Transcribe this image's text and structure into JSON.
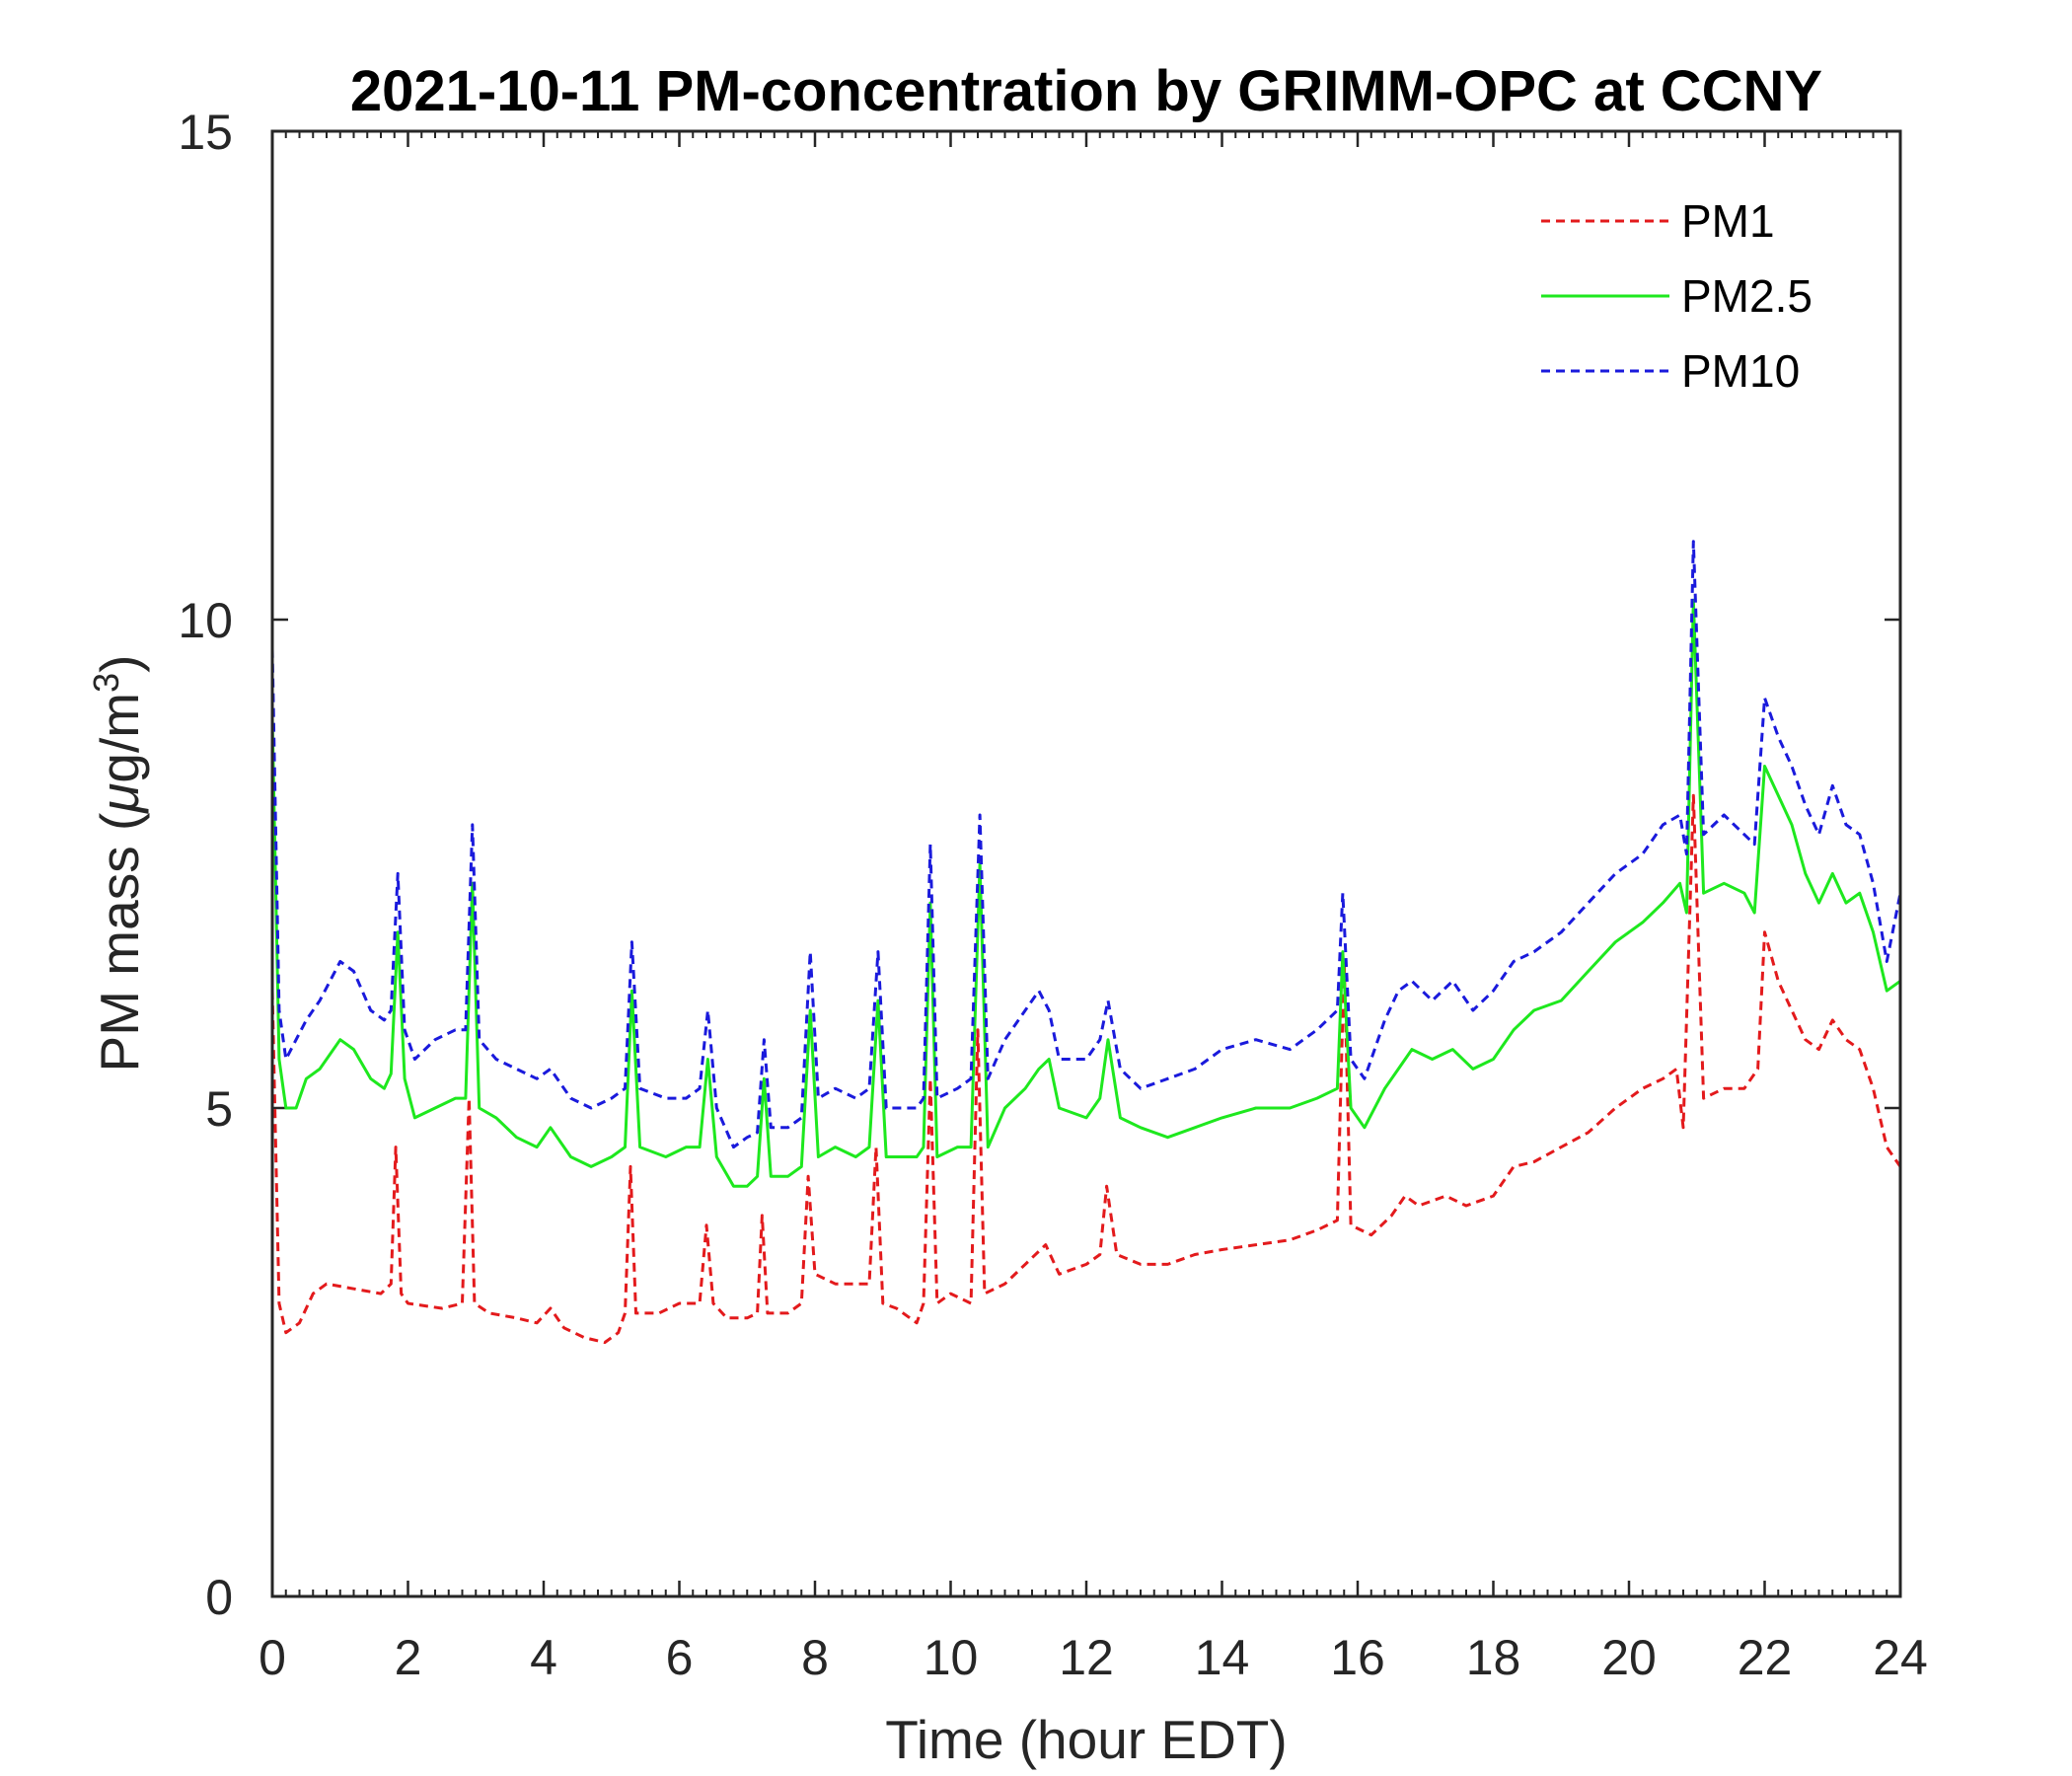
{
  "chart_data": {
    "type": "line",
    "title": "2021-10-11 PM-concentration by GRIMM-OPC at CCNY",
    "xlabel": "Time (hour EDT)",
    "ylabel": {
      "prefix": "PM mass (",
      "mu": "μ",
      "unit": "g/m",
      "sup": "3",
      "suffix": ")"
    },
    "xlim": [
      0,
      24
    ],
    "ylim": [
      0,
      15
    ],
    "xticks": [
      0,
      2,
      4,
      6,
      8,
      10,
      12,
      14,
      16,
      18,
      20,
      22,
      24
    ],
    "yticks": [
      0,
      5,
      10,
      15
    ],
    "legend_position": "top-right",
    "series": [
      {
        "name": "PM1",
        "color": "#e31a1c",
        "style": "dashed",
        "points": [
          [
            0,
            6.2
          ],
          [
            0.1,
            3.0
          ],
          [
            0.2,
            2.7
          ],
          [
            0.4,
            2.8
          ],
          [
            0.6,
            3.1
          ],
          [
            0.8,
            3.2
          ],
          [
            1.2,
            3.15
          ],
          [
            1.6,
            3.1
          ],
          [
            1.75,
            3.2
          ],
          [
            1.82,
            4.6
          ],
          [
            1.9,
            3.1
          ],
          [
            2.0,
            3.0
          ],
          [
            2.5,
            2.95
          ],
          [
            2.8,
            3.0
          ],
          [
            2.9,
            5.1
          ],
          [
            2.98,
            3.0
          ],
          [
            3.2,
            2.9
          ],
          [
            3.6,
            2.85
          ],
          [
            3.9,
            2.8
          ],
          [
            4.1,
            2.95
          ],
          [
            4.3,
            2.75
          ],
          [
            4.6,
            2.65
          ],
          [
            4.9,
            2.6
          ],
          [
            5.1,
            2.7
          ],
          [
            5.2,
            2.9
          ],
          [
            5.28,
            4.4
          ],
          [
            5.36,
            2.9
          ],
          [
            5.7,
            2.9
          ],
          [
            6.0,
            3.0
          ],
          [
            6.3,
            3.0
          ],
          [
            6.4,
            3.8
          ],
          [
            6.5,
            3.0
          ],
          [
            6.7,
            2.85
          ],
          [
            7.0,
            2.85
          ],
          [
            7.15,
            2.9
          ],
          [
            7.22,
            3.9
          ],
          [
            7.3,
            2.9
          ],
          [
            7.6,
            2.9
          ],
          [
            7.8,
            3.0
          ],
          [
            7.9,
            4.3
          ],
          [
            8.0,
            3.3
          ],
          [
            8.3,
            3.2
          ],
          [
            8.6,
            3.2
          ],
          [
            8.8,
            3.2
          ],
          [
            8.9,
            4.6
          ],
          [
            9.0,
            3.0
          ],
          [
            9.2,
            2.95
          ],
          [
            9.5,
            2.8
          ],
          [
            9.6,
            3.0
          ],
          [
            9.7,
            5.3
          ],
          [
            9.8,
            3.0
          ],
          [
            10.0,
            3.1
          ],
          [
            10.3,
            3.0
          ],
          [
            10.4,
            5.8
          ],
          [
            10.5,
            3.1
          ],
          [
            10.8,
            3.2
          ],
          [
            11.1,
            3.4
          ],
          [
            11.4,
            3.6
          ],
          [
            11.6,
            3.3
          ],
          [
            12.0,
            3.4
          ],
          [
            12.2,
            3.5
          ],
          [
            12.3,
            4.2
          ],
          [
            12.45,
            3.5
          ],
          [
            12.8,
            3.4
          ],
          [
            13.2,
            3.4
          ],
          [
            13.6,
            3.5
          ],
          [
            14.0,
            3.55
          ],
          [
            14.5,
            3.6
          ],
          [
            15.0,
            3.65
          ],
          [
            15.4,
            3.75
          ],
          [
            15.7,
            3.85
          ],
          [
            15.8,
            6.5
          ],
          [
            15.9,
            3.8
          ],
          [
            16.2,
            3.7
          ],
          [
            16.5,
            3.9
          ],
          [
            16.7,
            4.1
          ],
          [
            16.9,
            4.0
          ],
          [
            17.3,
            4.1
          ],
          [
            17.6,
            4.0
          ],
          [
            18.0,
            4.1
          ],
          [
            18.3,
            4.4
          ],
          [
            18.6,
            4.45
          ],
          [
            19.0,
            4.6
          ],
          [
            19.4,
            4.75
          ],
          [
            19.8,
            5.0
          ],
          [
            20.2,
            5.2
          ],
          [
            20.5,
            5.3
          ],
          [
            20.7,
            5.4
          ],
          [
            20.8,
            4.8
          ],
          [
            20.95,
            8.2
          ],
          [
            21.1,
            5.1
          ],
          [
            21.4,
            5.2
          ],
          [
            21.7,
            5.2
          ],
          [
            21.9,
            5.4
          ],
          [
            22.0,
            6.8
          ],
          [
            22.2,
            6.3
          ],
          [
            22.4,
            6.0
          ],
          [
            22.6,
            5.7
          ],
          [
            22.8,
            5.6
          ],
          [
            23.0,
            5.9
          ],
          [
            23.2,
            5.7
          ],
          [
            23.4,
            5.6
          ],
          [
            23.6,
            5.2
          ],
          [
            23.8,
            4.6
          ],
          [
            24.0,
            4.4
          ]
        ]
      },
      {
        "name": "PM2.5",
        "color": "#1ee81e",
        "style": "solid",
        "points": [
          [
            0,
            9.0
          ],
          [
            0.1,
            5.5
          ],
          [
            0.2,
            5.0
          ],
          [
            0.35,
            5.0
          ],
          [
            0.5,
            5.3
          ],
          [
            0.7,
            5.4
          ],
          [
            1.0,
            5.7
          ],
          [
            1.2,
            5.6
          ],
          [
            1.45,
            5.3
          ],
          [
            1.65,
            5.2
          ],
          [
            1.75,
            5.35
          ],
          [
            1.85,
            6.8
          ],
          [
            1.95,
            5.3
          ],
          [
            2.1,
            4.9
          ],
          [
            2.4,
            5.0
          ],
          [
            2.7,
            5.1
          ],
          [
            2.85,
            5.1
          ],
          [
            2.95,
            7.3
          ],
          [
            3.05,
            5.0
          ],
          [
            3.3,
            4.9
          ],
          [
            3.6,
            4.7
          ],
          [
            3.9,
            4.6
          ],
          [
            4.1,
            4.8
          ],
          [
            4.4,
            4.5
          ],
          [
            4.7,
            4.4
          ],
          [
            5.0,
            4.5
          ],
          [
            5.2,
            4.6
          ],
          [
            5.3,
            6.2
          ],
          [
            5.42,
            4.6
          ],
          [
            5.8,
            4.5
          ],
          [
            6.1,
            4.6
          ],
          [
            6.3,
            4.6
          ],
          [
            6.42,
            5.5
          ],
          [
            6.55,
            4.5
          ],
          [
            6.8,
            4.2
          ],
          [
            7.0,
            4.2
          ],
          [
            7.15,
            4.3
          ],
          [
            7.25,
            5.3
          ],
          [
            7.35,
            4.3
          ],
          [
            7.6,
            4.3
          ],
          [
            7.8,
            4.4
          ],
          [
            7.93,
            6.0
          ],
          [
            8.05,
            4.5
          ],
          [
            8.3,
            4.6
          ],
          [
            8.6,
            4.5
          ],
          [
            8.8,
            4.6
          ],
          [
            8.93,
            6.1
          ],
          [
            9.05,
            4.5
          ],
          [
            9.3,
            4.5
          ],
          [
            9.5,
            4.5
          ],
          [
            9.6,
            4.6
          ],
          [
            9.7,
            7.1
          ],
          [
            9.8,
            4.5
          ],
          [
            10.1,
            4.6
          ],
          [
            10.3,
            4.6
          ],
          [
            10.43,
            7.5
          ],
          [
            10.55,
            4.6
          ],
          [
            10.8,
            5.0
          ],
          [
            11.1,
            5.2
          ],
          [
            11.3,
            5.4
          ],
          [
            11.45,
            5.5
          ],
          [
            11.6,
            5.0
          ],
          [
            12.0,
            4.9
          ],
          [
            12.2,
            5.1
          ],
          [
            12.32,
            5.7
          ],
          [
            12.5,
            4.9
          ],
          [
            12.8,
            4.8
          ],
          [
            13.2,
            4.7
          ],
          [
            13.6,
            4.8
          ],
          [
            14.0,
            4.9
          ],
          [
            14.5,
            5.0
          ],
          [
            15.0,
            5.0
          ],
          [
            15.4,
            5.1
          ],
          [
            15.7,
            5.2
          ],
          [
            15.78,
            6.6
          ],
          [
            15.9,
            5.0
          ],
          [
            16.1,
            4.8
          ],
          [
            16.4,
            5.2
          ],
          [
            16.6,
            5.4
          ],
          [
            16.8,
            5.6
          ],
          [
            17.1,
            5.5
          ],
          [
            17.4,
            5.6
          ],
          [
            17.7,
            5.4
          ],
          [
            18.0,
            5.5
          ],
          [
            18.3,
            5.8
          ],
          [
            18.6,
            6.0
          ],
          [
            19.0,
            6.1
          ],
          [
            19.4,
            6.4
          ],
          [
            19.8,
            6.7
          ],
          [
            20.2,
            6.9
          ],
          [
            20.5,
            7.1
          ],
          [
            20.75,
            7.3
          ],
          [
            20.85,
            7.0
          ],
          [
            20.95,
            10.2
          ],
          [
            21.1,
            7.2
          ],
          [
            21.4,
            7.3
          ],
          [
            21.7,
            7.2
          ],
          [
            21.85,
            7.0
          ],
          [
            22.0,
            8.5
          ],
          [
            22.2,
            8.2
          ],
          [
            22.4,
            7.9
          ],
          [
            22.6,
            7.4
          ],
          [
            22.8,
            7.1
          ],
          [
            23.0,
            7.4
          ],
          [
            23.2,
            7.1
          ],
          [
            23.4,
            7.2
          ],
          [
            23.6,
            6.8
          ],
          [
            23.8,
            6.2
          ],
          [
            24.0,
            6.3
          ]
        ]
      },
      {
        "name": "PM10",
        "color": "#1a1adc",
        "style": "dashed",
        "points": [
          [
            0,
            9.7
          ],
          [
            0.1,
            6.0
          ],
          [
            0.2,
            5.5
          ],
          [
            0.35,
            5.7
          ],
          [
            0.5,
            5.9
          ],
          [
            0.7,
            6.1
          ],
          [
            1.0,
            6.5
          ],
          [
            1.2,
            6.4
          ],
          [
            1.45,
            6.0
          ],
          [
            1.65,
            5.9
          ],
          [
            1.75,
            6.0
          ],
          [
            1.85,
            7.4
          ],
          [
            1.95,
            5.8
          ],
          [
            2.1,
            5.5
          ],
          [
            2.4,
            5.7
          ],
          [
            2.7,
            5.8
          ],
          [
            2.85,
            5.8
          ],
          [
            2.95,
            7.9
          ],
          [
            3.05,
            5.7
          ],
          [
            3.3,
            5.5
          ],
          [
            3.6,
            5.4
          ],
          [
            3.9,
            5.3
          ],
          [
            4.1,
            5.4
          ],
          [
            4.4,
            5.1
          ],
          [
            4.7,
            5.0
          ],
          [
            5.0,
            5.1
          ],
          [
            5.2,
            5.2
          ],
          [
            5.3,
            6.7
          ],
          [
            5.42,
            5.2
          ],
          [
            5.8,
            5.1
          ],
          [
            6.1,
            5.1
          ],
          [
            6.3,
            5.2
          ],
          [
            6.42,
            6.0
          ],
          [
            6.55,
            5.0
          ],
          [
            6.8,
            4.6
          ],
          [
            7.0,
            4.7
          ],
          [
            7.15,
            4.75
          ],
          [
            7.25,
            5.7
          ],
          [
            7.35,
            4.8
          ],
          [
            7.6,
            4.8
          ],
          [
            7.8,
            4.9
          ],
          [
            7.93,
            6.6
          ],
          [
            8.05,
            5.1
          ],
          [
            8.3,
            5.2
          ],
          [
            8.6,
            5.1
          ],
          [
            8.8,
            5.2
          ],
          [
            8.93,
            6.6
          ],
          [
            9.05,
            5.0
          ],
          [
            9.3,
            5.0
          ],
          [
            9.5,
            5.0
          ],
          [
            9.6,
            5.1
          ],
          [
            9.7,
            7.7
          ],
          [
            9.8,
            5.1
          ],
          [
            10.1,
            5.2
          ],
          [
            10.3,
            5.3
          ],
          [
            10.43,
            8.0
          ],
          [
            10.55,
            5.3
          ],
          [
            10.8,
            5.7
          ],
          [
            11.1,
            6.0
          ],
          [
            11.3,
            6.2
          ],
          [
            11.45,
            6.0
          ],
          [
            11.6,
            5.5
          ],
          [
            12.0,
            5.5
          ],
          [
            12.2,
            5.7
          ],
          [
            12.32,
            6.1
          ],
          [
            12.5,
            5.4
          ],
          [
            12.8,
            5.2
          ],
          [
            13.2,
            5.3
          ],
          [
            13.6,
            5.4
          ],
          [
            14.0,
            5.6
          ],
          [
            14.5,
            5.7
          ],
          [
            15.0,
            5.6
          ],
          [
            15.4,
            5.8
          ],
          [
            15.7,
            6.0
          ],
          [
            15.78,
            7.2
          ],
          [
            15.9,
            5.5
          ],
          [
            16.1,
            5.3
          ],
          [
            16.4,
            5.9
          ],
          [
            16.6,
            6.2
          ],
          [
            16.8,
            6.3
          ],
          [
            17.1,
            6.1
          ],
          [
            17.4,
            6.3
          ],
          [
            17.7,
            6.0
          ],
          [
            18.0,
            6.2
          ],
          [
            18.3,
            6.5
          ],
          [
            18.6,
            6.6
          ],
          [
            19.0,
            6.8
          ],
          [
            19.4,
            7.1
          ],
          [
            19.8,
            7.4
          ],
          [
            20.2,
            7.6
          ],
          [
            20.5,
            7.9
          ],
          [
            20.75,
            8.0
          ],
          [
            20.85,
            7.6
          ],
          [
            20.95,
            10.8
          ],
          [
            21.1,
            7.8
          ],
          [
            21.4,
            8.0
          ],
          [
            21.7,
            7.8
          ],
          [
            21.85,
            7.7
          ],
          [
            22.0,
            9.2
          ],
          [
            22.2,
            8.8
          ],
          [
            22.4,
            8.5
          ],
          [
            22.6,
            8.1
          ],
          [
            22.8,
            7.8
          ],
          [
            23.0,
            8.3
          ],
          [
            23.2,
            7.9
          ],
          [
            23.4,
            7.8
          ],
          [
            23.6,
            7.3
          ],
          [
            23.8,
            6.5
          ],
          [
            24.0,
            7.2
          ]
        ]
      }
    ]
  }
}
